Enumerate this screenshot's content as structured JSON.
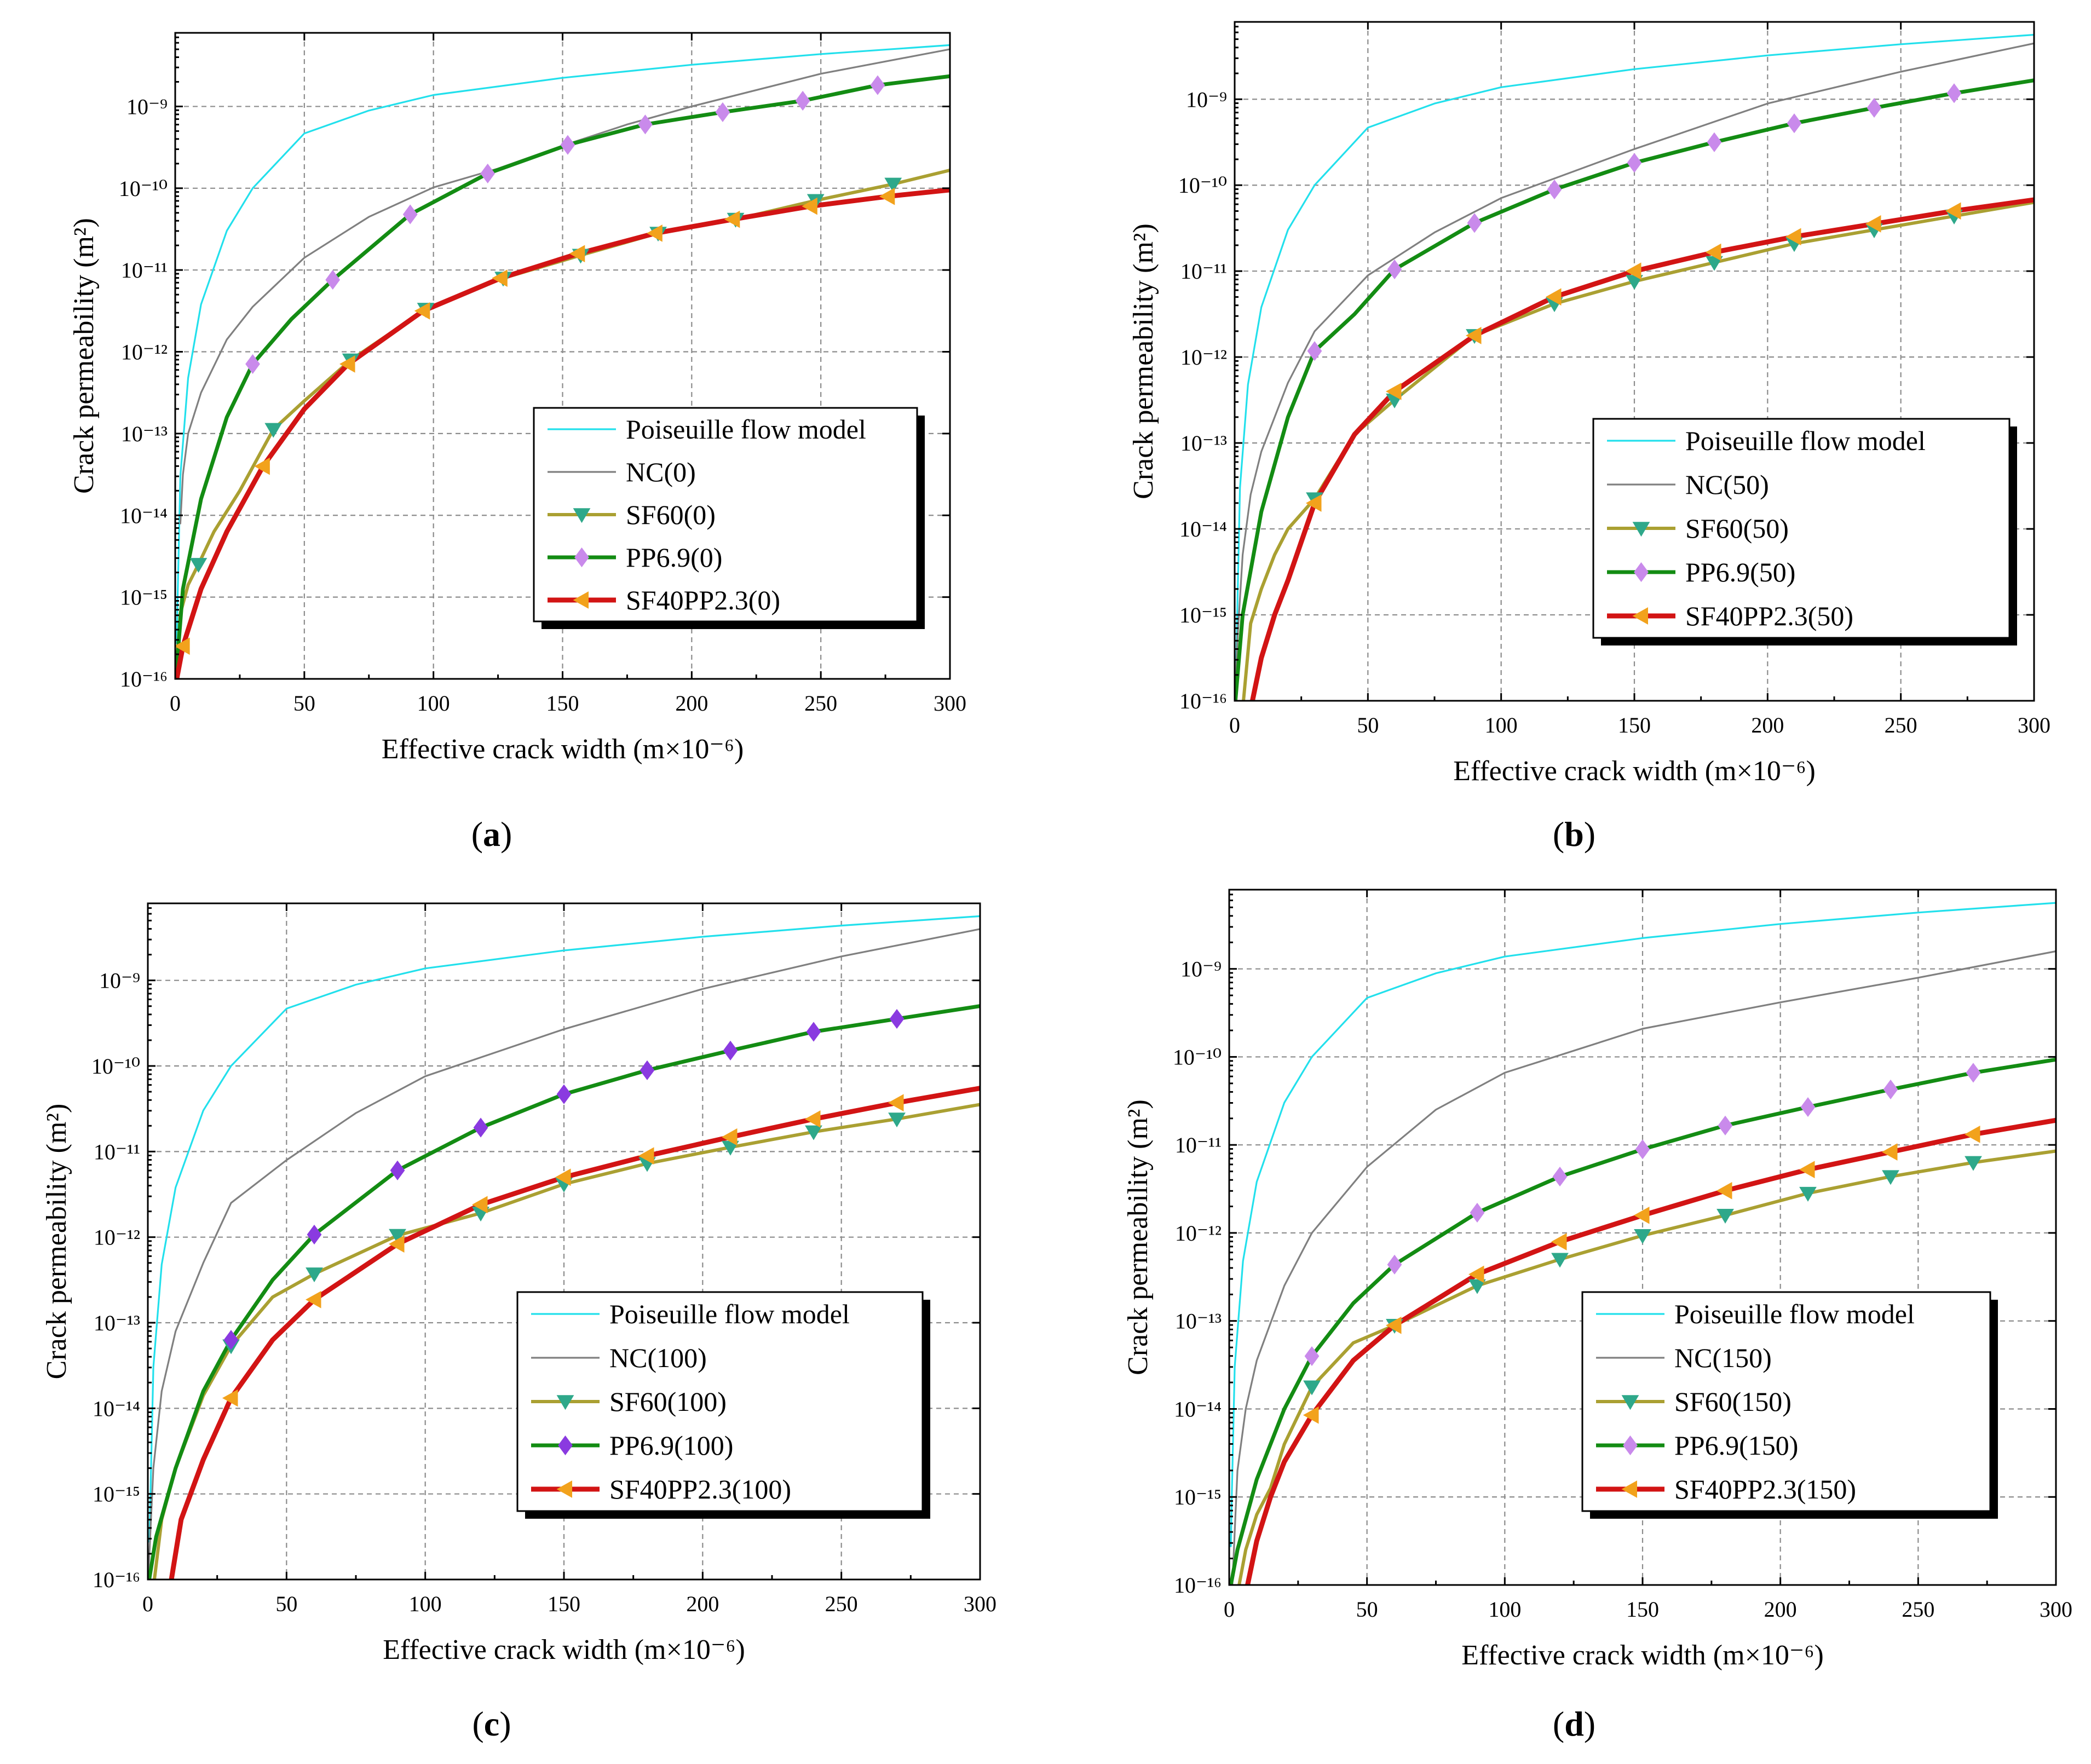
{
  "figure": {
    "series_colors": {
      "poiseuille": "#22e0ec",
      "nc": "#808080",
      "sf60": "#aaa032",
      "pp69": "#138c13",
      "sf40pp23": "#d21414",
      "marker_sf60": "#2ea88a",
      "marker_pp69_light": "#c98aeb",
      "marker_pp69_dark": "#8a3ae0",
      "marker_sf40pp23": "#f2a21c"
    }
  },
  "chart_data": [
    {
      "type": "line",
      "panel_label": "(a)",
      "panel_letter": "a",
      "xlabel": "Effective crack width (m×10⁻⁶)",
      "ylabel": "Crack permeability (m²)",
      "xlim": [
        0,
        300
      ],
      "ylim_log10": [
        -16,
        -8.1
      ],
      "x_ticks": [
        "0",
        "50",
        "100",
        "150",
        "200",
        "250",
        "300"
      ],
      "y_ticks": [
        "10⁻¹⁶",
        "10⁻¹⁵",
        "10⁻¹⁴",
        "10⁻¹³",
        "10⁻¹²",
        "10⁻¹¹",
        "10⁻¹⁰",
        "10⁻⁹"
      ],
      "legend": [
        "Poiseuille flow model",
        "NC(0)",
        "SF60(0)",
        "PP6.9(0)",
        "SF40PP2.3(0)"
      ],
      "pp_marker_style": "light",
      "series": [
        {
          "key": "poiseuille",
          "name": "Poiseuille flow model",
          "x": [
            0.6,
            1,
            2,
            5,
            10,
            20,
            30,
            50,
            75,
            100,
            150,
            200,
            250,
            300
          ],
          "log10_k": [
            -15.56,
            -14.92,
            -13.52,
            -12.32,
            -11.42,
            -10.52,
            -10.0,
            -9.33,
            -9.05,
            -8.86,
            -8.65,
            -8.49,
            -8.36,
            -8.25
          ]
        },
        {
          "key": "nc",
          "name": "NC(0)",
          "x": [
            2,
            3,
            5,
            10,
            20,
            30,
            50,
            75,
            100,
            125,
            150,
            175,
            200,
            250,
            300
          ],
          "log10_k": [
            -14.1,
            -13.5,
            -13.0,
            -12.5,
            -11.85,
            -11.45,
            -10.85,
            -10.35,
            -9.99,
            -9.76,
            -9.48,
            -9.22,
            -9.0,
            -8.6,
            -8.3
          ]
        },
        {
          "key": "sf60",
          "name": "SF60(0)",
          "x": [
            0,
            2,
            5,
            9,
            15,
            25,
            38,
            50,
            68,
            97,
            127,
            157,
            187,
            217,
            248,
            278,
            300
          ],
          "log10_k": [
            -16.1,
            -15.2,
            -14.85,
            -14.6,
            -14.2,
            -13.7,
            -12.95,
            -12.6,
            -12.1,
            -11.48,
            -11.1,
            -10.82,
            -10.55,
            -10.38,
            -10.15,
            -9.95,
            -9.78
          ],
          "markers_x": [
            9,
            38,
            68,
            97,
            127,
            157,
            187,
            217,
            248,
            278
          ]
        },
        {
          "key": "pp69",
          "name": "PP6.9(0)",
          "x": [
            0,
            3,
            10,
            20,
            30,
            45,
            61,
            91,
            121,
            152,
            182,
            212,
            243,
            272,
            300
          ],
          "log10_k": [
            -16.1,
            -14.9,
            -13.8,
            -12.8,
            -12.15,
            -11.6,
            -11.12,
            -10.32,
            -9.82,
            -9.47,
            -9.22,
            -9.07,
            -8.93,
            -8.74,
            -8.63
          ],
          "markers_x": [
            30,
            61,
            91,
            121,
            152,
            182,
            212,
            243,
            272
          ]
        },
        {
          "key": "sf40pp23",
          "name": "SF40PP2.3(0)",
          "x": [
            0,
            3,
            10,
            20,
            34,
            50,
            67,
            96,
            126,
            156,
            186,
            216,
            246,
            276,
            300
          ],
          "log10_k": [
            -16.1,
            -15.6,
            -14.9,
            -14.2,
            -13.4,
            -12.7,
            -12.15,
            -11.5,
            -11.1,
            -10.8,
            -10.55,
            -10.38,
            -10.22,
            -10.1,
            -10.02
          ],
          "markers_x": [
            3,
            34,
            67,
            96,
            126,
            156,
            186,
            216,
            246,
            276
          ]
        }
      ]
    },
    {
      "type": "line",
      "panel_label": "(b)",
      "panel_letter": "b",
      "xlabel": "Effective crack width (m×10⁻⁶)",
      "ylabel": "Crack permeability (m²)",
      "xlim": [
        0,
        300
      ],
      "ylim_log10": [
        -16,
        -8.1
      ],
      "x_ticks": [
        "0",
        "50",
        "100",
        "150",
        "200",
        "250",
        "300"
      ],
      "y_ticks": [
        "10⁻¹⁶",
        "10⁻¹⁵",
        "10⁻¹⁴",
        "10⁻¹³",
        "10⁻¹²",
        "10⁻¹¹",
        "10⁻¹⁰",
        "10⁻⁹"
      ],
      "legend": [
        "Poiseuille flow model",
        "NC(50)",
        "SF60(50)",
        "PP6.9(50)",
        "SF40PP2.3(50)"
      ],
      "pp_marker_style": "light",
      "series": [
        {
          "key": "poiseuille",
          "name": "Poiseuille flow model",
          "x": [
            0.6,
            1,
            2,
            5,
            10,
            20,
            30,
            50,
            75,
            100,
            150,
            200,
            250,
            300
          ],
          "log10_k": [
            -15.56,
            -14.92,
            -13.52,
            -12.32,
            -11.42,
            -10.52,
            -10.0,
            -9.33,
            -9.05,
            -8.86,
            -8.65,
            -8.49,
            -8.36,
            -8.25
          ]
        },
        {
          "key": "nc",
          "name": "NC(50)",
          "x": [
            0,
            1,
            3,
            6,
            10,
            20,
            30,
            50,
            75,
            100,
            150,
            200,
            250,
            300
          ],
          "log10_k": [
            -16.1,
            -15.3,
            -14.3,
            -13.6,
            -13.1,
            -12.3,
            -11.7,
            -11.05,
            -10.55,
            -10.15,
            -9.58,
            -9.05,
            -8.68,
            -8.35
          ]
        },
        {
          "key": "sf60",
          "name": "SF60(50)",
          "x": [
            3,
            6,
            10,
            15,
            20,
            30,
            45,
            60,
            90,
            120,
            150,
            180,
            210,
            240,
            270,
            300
          ],
          "log10_k": [
            -16.1,
            -15.1,
            -14.7,
            -14.3,
            -14.0,
            -13.65,
            -12.9,
            -12.5,
            -11.75,
            -11.38,
            -11.12,
            -10.9,
            -10.68,
            -10.52,
            -10.36,
            -10.2
          ],
          "markers_x": [
            30,
            60,
            90,
            120,
            150,
            180,
            210,
            240,
            270
          ]
        },
        {
          "key": "pp69",
          "name": "PP6.9(50)",
          "x": [
            0,
            3,
            10,
            20,
            30,
            45,
            60,
            90,
            120,
            150,
            180,
            210,
            240,
            270,
            300
          ],
          "log10_k": [
            -16.1,
            -15.0,
            -13.8,
            -12.7,
            -11.93,
            -11.5,
            -10.98,
            -10.44,
            -10.05,
            -9.74,
            -9.5,
            -9.28,
            -9.1,
            -8.93,
            -8.78
          ],
          "markers_x": [
            30,
            60,
            90,
            120,
            150,
            180,
            210,
            240,
            270
          ]
        },
        {
          "key": "sf40pp23",
          "name": "SF40PP2.3(50)",
          "x": [
            6,
            10,
            15,
            20,
            30,
            45,
            60,
            90,
            120,
            150,
            180,
            210,
            240,
            270,
            300
          ],
          "log10_k": [
            -16.1,
            -15.5,
            -15.0,
            -14.6,
            -13.7,
            -12.9,
            -12.4,
            -11.75,
            -11.3,
            -11.0,
            -10.78,
            -10.6,
            -10.45,
            -10.3,
            -10.17
          ],
          "markers_x": [
            30,
            60,
            90,
            120,
            150,
            180,
            210,
            240,
            270
          ]
        }
      ]
    },
    {
      "type": "line",
      "panel_label": "(c)",
      "panel_letter": "c",
      "xlabel": "Effective crack width (m×10⁻⁶)",
      "ylabel": "Crack permeability (m²)",
      "xlim": [
        0,
        300
      ],
      "ylim_log10": [
        -16,
        -8.1
      ],
      "x_ticks": [
        "0",
        "50",
        "100",
        "150",
        "200",
        "250",
        "300"
      ],
      "y_ticks": [
        "10⁻¹⁶",
        "10⁻¹⁵",
        "10⁻¹⁴",
        "10⁻¹³",
        "10⁻¹²",
        "10⁻¹¹",
        "10⁻¹⁰",
        "10⁻⁹"
      ],
      "legend": [
        "Poiseuille flow model",
        "NC(100)",
        "SF60(100)",
        "PP6.9(100)",
        "SF40PP2.3(100)"
      ],
      "pp_marker_style": "dark",
      "series": [
        {
          "key": "poiseuille",
          "name": "Poiseuille flow model",
          "x": [
            0.6,
            1,
            2,
            5,
            10,
            20,
            30,
            50,
            75,
            100,
            150,
            200,
            250,
            300
          ],
          "log10_k": [
            -15.56,
            -14.92,
            -13.52,
            -12.32,
            -11.42,
            -10.52,
            -10.0,
            -9.33,
            -9.05,
            -8.86,
            -8.65,
            -8.49,
            -8.36,
            -8.25
          ]
        },
        {
          "key": "nc",
          "name": "NC(100)",
          "x": [
            0,
            2,
            5,
            10,
            20,
            30,
            50,
            75,
            100,
            150,
            200,
            250,
            300
          ],
          "log10_k": [
            -16.1,
            -14.7,
            -13.8,
            -13.1,
            -12.3,
            -11.6,
            -11.1,
            -10.55,
            -10.12,
            -9.57,
            -9.1,
            -8.72,
            -8.4
          ]
        },
        {
          "key": "sf60",
          "name": "SF60(100)",
          "x": [
            2,
            5,
            10,
            20,
            30,
            45,
            60,
            90,
            120,
            150,
            180,
            210,
            240,
            270,
            300
          ],
          "log10_k": [
            -16.1,
            -15.3,
            -14.7,
            -13.85,
            -13.27,
            -12.7,
            -12.43,
            -11.98,
            -11.72,
            -11.38,
            -11.14,
            -10.95,
            -10.77,
            -10.62,
            -10.45
          ],
          "markers_x": [
            30,
            60,
            90,
            120,
            150,
            180,
            210,
            240,
            270
          ]
        },
        {
          "key": "pp69",
          "name": "PP6.9(100)",
          "x": [
            0,
            3,
            10,
            20,
            30,
            45,
            60,
            90,
            120,
            150,
            180,
            210,
            240,
            270,
            300
          ],
          "log10_k": [
            -16.1,
            -15.5,
            -14.7,
            -13.8,
            -13.2,
            -12.5,
            -11.97,
            -11.22,
            -10.72,
            -10.33,
            -10.05,
            -9.82,
            -9.6,
            -9.45,
            -9.3
          ],
          "markers_x": [
            30,
            60,
            90,
            120,
            150,
            180,
            210,
            240,
            270
          ]
        },
        {
          "key": "sf40pp23",
          "name": "SF40PP2.3(100)",
          "x": [
            8,
            12,
            20,
            30,
            45,
            60,
            90,
            120,
            150,
            180,
            210,
            240,
            270,
            300
          ],
          "log10_k": [
            -16.1,
            -15.3,
            -14.6,
            -13.88,
            -13.2,
            -12.73,
            -12.08,
            -11.62,
            -11.3,
            -11.05,
            -10.83,
            -10.62,
            -10.43,
            -10.26
          ],
          "markers_x": [
            30,
            60,
            90,
            120,
            150,
            180,
            210,
            240,
            270
          ]
        }
      ]
    },
    {
      "type": "line",
      "panel_label": "(d)",
      "panel_letter": "d",
      "xlabel": "Effective crack width (m×10⁻⁶)",
      "ylabel": "Crack permeability (m²)",
      "xlim": [
        0,
        300
      ],
      "ylim_log10": [
        -16,
        -8.1
      ],
      "x_ticks": [
        "0",
        "50",
        "100",
        "150",
        "200",
        "250",
        "300"
      ],
      "y_ticks": [
        "10⁻¹⁶",
        "10⁻¹⁵",
        "10⁻¹⁴",
        "10⁻¹³",
        "10⁻¹²",
        "10⁻¹¹",
        "10⁻¹⁰",
        "10⁻⁹"
      ],
      "legend": [
        "Poiseuille flow model",
        "NC(150)",
        "SF60(150)",
        "PP6.9(150)",
        "SF40PP2.3(150)"
      ],
      "pp_marker_style": "light",
      "series": [
        {
          "key": "poiseuille",
          "name": "Poiseuille flow model",
          "x": [
            0.6,
            1,
            2,
            5,
            10,
            20,
            30,
            50,
            75,
            100,
            150,
            200,
            250,
            300
          ],
          "log10_k": [
            -15.56,
            -14.92,
            -13.52,
            -12.32,
            -11.42,
            -10.52,
            -10.0,
            -9.33,
            -9.05,
            -8.86,
            -8.65,
            -8.49,
            -8.36,
            -8.25
          ]
        },
        {
          "key": "nc",
          "name": "NC(150)",
          "x": [
            1,
            3,
            6,
            10,
            20,
            30,
            50,
            75,
            100,
            150,
            200,
            250,
            300
          ],
          "log10_k": [
            -16.1,
            -14.7,
            -14.0,
            -13.45,
            -12.6,
            -12.0,
            -11.25,
            -10.6,
            -10.18,
            -9.68,
            -9.38,
            -9.1,
            -8.8
          ]
        },
        {
          "key": "sf60",
          "name": "SF60(150)",
          "x": [
            3,
            6,
            10,
            15,
            20,
            30,
            45,
            60,
            90,
            120,
            150,
            180,
            210,
            240,
            270,
            300
          ],
          "log10_k": [
            -16.1,
            -15.6,
            -15.2,
            -14.9,
            -14.4,
            -13.75,
            -13.25,
            -13.05,
            -12.6,
            -12.3,
            -12.03,
            -11.8,
            -11.55,
            -11.36,
            -11.2,
            -11.07
          ],
          "markers_x": [
            30,
            60,
            90,
            120,
            150,
            180,
            210,
            240,
            270
          ]
        },
        {
          "key": "pp69",
          "name": "PP6.9(150)",
          "x": [
            0,
            3,
            10,
            20,
            30,
            45,
            60,
            90,
            120,
            150,
            180,
            210,
            240,
            270,
            300
          ],
          "log10_k": [
            -16.1,
            -15.6,
            -14.8,
            -14.0,
            -13.4,
            -12.8,
            -12.36,
            -11.77,
            -11.36,
            -11.05,
            -10.78,
            -10.57,
            -10.37,
            -10.18,
            -10.03
          ],
          "markers_x": [
            30,
            60,
            90,
            120,
            150,
            180,
            210,
            240,
            270
          ]
        },
        {
          "key": "sf40pp23",
          "name": "SF40PP2.3(150)",
          "x": [
            6,
            10,
            15,
            20,
            30,
            45,
            60,
            90,
            120,
            150,
            180,
            210,
            240,
            270,
            300
          ],
          "log10_k": [
            -16.1,
            -15.5,
            -15.0,
            -14.6,
            -14.07,
            -13.45,
            -13.05,
            -12.47,
            -12.1,
            -11.8,
            -11.52,
            -11.28,
            -11.08,
            -10.88,
            -10.72
          ],
          "markers_x": [
            30,
            60,
            90,
            120,
            150,
            180,
            210,
            240,
            270
          ]
        }
      ]
    }
  ]
}
